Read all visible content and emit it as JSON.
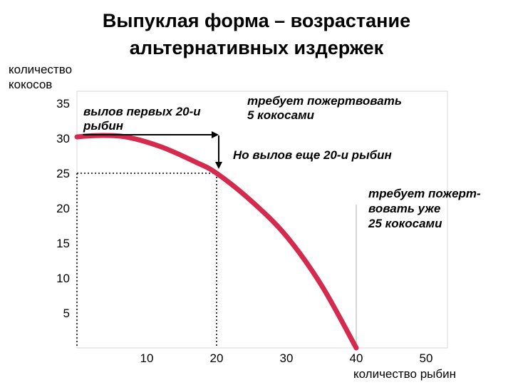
{
  "slide": {
    "title_line1": "Выпуклая форма – возрастание",
    "title_line2": "альтернативных издержек"
  },
  "chart_data": {
    "type": "line",
    "ylabel": [
      "количество",
      "кокосов"
    ],
    "xlabel": "количество рыбин",
    "xlim": [
      0,
      52
    ],
    "ylim": [
      0,
      35
    ],
    "x_ticks": [
      10,
      20,
      30,
      40,
      50
    ],
    "y_ticks": [
      5,
      10,
      15,
      20,
      25,
      30,
      35
    ],
    "grid": false,
    "series": [
      {
        "color": "#d42a4e",
        "x": [
          0,
          3,
          7,
          12,
          17,
          20,
          25,
          30,
          35,
          40
        ],
        "y": [
          30.2,
          30.4,
          30.2,
          28.8,
          26.6,
          25,
          21,
          16,
          9,
          0
        ]
      }
    ],
    "reference_lines": [
      {
        "x": 20,
        "y": 25,
        "style": "dotted"
      },
      {
        "x": 40,
        "style": "solid-gray"
      }
    ],
    "annotations": [
      {
        "lines": [
          "вылов первых 20-и",
          "рыбин"
        ]
      },
      {
        "lines": [
          "требует пожертвовать",
          "5 кокосами"
        ]
      },
      {
        "lines": [
          "Но вылов еще 20-и рыбин"
        ]
      },
      {
        "lines": [
          "требует пожерт-",
          "вовать уже",
          "25 кокосами"
        ]
      }
    ]
  }
}
